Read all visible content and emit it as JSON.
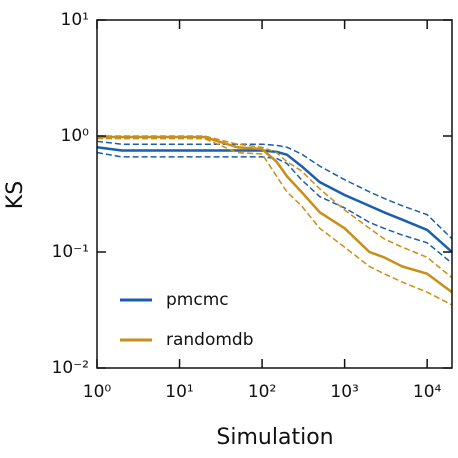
{
  "chart_data": {
    "type": "line",
    "x_label": "Simulation",
    "y_label": "KS",
    "log_x": true,
    "log_y": true,
    "xlim": [
      1,
      20000
    ],
    "ylim": [
      0.01,
      10
    ],
    "xticks": [
      {
        "value": 1,
        "label": "10⁰"
      },
      {
        "value": 10,
        "label": "10¹"
      },
      {
        "value": 100,
        "label": "10²"
      },
      {
        "value": 1000,
        "label": "10³"
      },
      {
        "value": 10000,
        "label": "10⁴"
      }
    ],
    "yticks": [
      {
        "value": 0.01,
        "label": "10⁻²"
      },
      {
        "value": 0.1,
        "label": "10⁻¹"
      },
      {
        "value": 1,
        "label": "10⁰"
      },
      {
        "value": 10,
        "label": "10¹"
      }
    ],
    "legend_position": "lower left",
    "x": [
      1,
      2,
      5,
      10,
      20,
      50,
      100,
      150,
      200,
      300,
      500,
      1000,
      2000,
      3000,
      5000,
      10000,
      20000
    ],
    "series": [
      {
        "name": "pmcmc",
        "color": "#1a5fab",
        "values": [
          0.8,
          0.75,
          0.75,
          0.75,
          0.75,
          0.75,
          0.75,
          0.73,
          0.69,
          0.55,
          0.4,
          0.31,
          0.25,
          0.22,
          0.19,
          0.155,
          0.1
        ],
        "upper": [
          0.9,
          0.85,
          0.85,
          0.85,
          0.85,
          0.85,
          0.85,
          0.83,
          0.8,
          0.7,
          0.55,
          0.42,
          0.33,
          0.29,
          0.25,
          0.21,
          0.13
        ],
        "lower": [
          0.72,
          0.66,
          0.66,
          0.66,
          0.66,
          0.66,
          0.66,
          0.64,
          0.58,
          0.42,
          0.3,
          0.24,
          0.18,
          0.16,
          0.14,
          0.12,
          0.08
        ]
      },
      {
        "name": "randomdb",
        "color": "#c98e16",
        "values": [
          0.98,
          0.98,
          0.98,
          0.98,
          0.98,
          0.8,
          0.77,
          0.6,
          0.45,
          0.33,
          0.22,
          0.16,
          0.1,
          0.09,
          0.075,
          0.065,
          0.045
        ],
        "upper": [
          1,
          1,
          1,
          1,
          1,
          0.85,
          0.8,
          0.72,
          0.6,
          0.5,
          0.35,
          0.23,
          0.16,
          0.13,
          0.11,
          0.09,
          0.06
        ],
        "lower": [
          0.95,
          0.95,
          0.95,
          0.95,
          0.95,
          0.72,
          0.7,
          0.45,
          0.33,
          0.25,
          0.16,
          0.11,
          0.075,
          0.065,
          0.055,
          0.045,
          0.035
        ]
      }
    ]
  }
}
